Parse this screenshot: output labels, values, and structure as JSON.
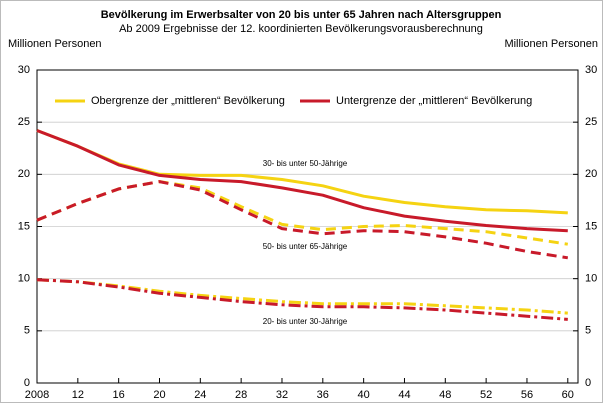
{
  "chart_data": {
    "type": "line",
    "title": "Bevölkerung im Erwerbsalter von 20 bis unter 65 Jahren nach Altersgruppen",
    "subtitle": "Ab 2009 Ergebnisse der 12. koordinierten Bevölkerungsvorausberechnung",
    "y_label": "Millionen Personen",
    "y2_label": "Millionen Personen",
    "legend": [
      {
        "name": "Obergrenze der „mittleren“ Bevölkerung",
        "color": "#f5d312"
      },
      {
        "name": "Untergrenze der „mittleren“ Bevölkerung",
        "color": "#c81a2a"
      }
    ],
    "x": [
      2008,
      2012,
      2016,
      2020,
      2024,
      2028,
      2032,
      2036,
      2040,
      2044,
      2048,
      2052,
      2056,
      2060
    ],
    "groups": [
      {
        "label": "30- bis unter 50-Jährige",
        "dash": "none",
        "upper": [
          24.2,
          22.7,
          21.0,
          20.0,
          19.9,
          19.9,
          19.5,
          18.9,
          17.9,
          17.3,
          16.9,
          16.6,
          16.5,
          16.3
        ],
        "lower": [
          24.2,
          22.7,
          20.9,
          19.9,
          19.5,
          19.3,
          18.7,
          18.0,
          16.8,
          16.0,
          15.5,
          15.1,
          14.8,
          14.6
        ]
      },
      {
        "label": "50- bis unter 65-Jährige",
        "dash": "10,6",
        "upper": [
          15.6,
          17.2,
          18.6,
          19.3,
          18.7,
          16.9,
          15.2,
          14.7,
          15.0,
          15.1,
          14.8,
          14.5,
          13.9,
          13.3
        ],
        "lower": [
          15.6,
          17.2,
          18.6,
          19.3,
          18.5,
          16.6,
          14.8,
          14.3,
          14.6,
          14.5,
          14.0,
          13.4,
          12.6,
          12.0
        ]
      },
      {
        "label": "20- bis unter 30-Jährige",
        "dash": "12,4,3,4",
        "upper": [
          9.9,
          9.7,
          9.3,
          8.8,
          8.4,
          8.1,
          7.8,
          7.6,
          7.6,
          7.6,
          7.4,
          7.2,
          7.0,
          6.7
        ],
        "lower": [
          9.9,
          9.7,
          9.2,
          8.6,
          8.2,
          7.8,
          7.5,
          7.3,
          7.3,
          7.2,
          7.0,
          6.7,
          6.4,
          6.1
        ]
      }
    ],
    "xlim": [
      2008,
      2061
    ],
    "xticks": [
      2008,
      {
        "value": 2012,
        "label": "12"
      },
      {
        "value": 2016,
        "label": "16"
      },
      {
        "value": 2020,
        "label": "20"
      },
      {
        "value": 2024,
        "label": "24"
      },
      {
        "value": 2028,
        "label": "28"
      },
      {
        "value": 2032,
        "label": "32"
      },
      {
        "value": 2036,
        "label": "36"
      },
      {
        "value": 2040,
        "label": "40"
      },
      {
        "value": 2044,
        "label": "44"
      },
      {
        "value": 2048,
        "label": "48"
      },
      {
        "value": 2052,
        "label": "52"
      },
      {
        "value": 2056,
        "label": "56"
      },
      {
        "value": 2060,
        "label": "60"
      }
    ],
    "ylim": [
      0,
      30
    ],
    "yticks": [
      0,
      5,
      10,
      15,
      20,
      25,
      30
    ],
    "y2lim": [
      0,
      30
    ],
    "y2ticks": [
      0,
      5,
      10,
      15,
      20,
      25,
      30
    ],
    "grid": true
  }
}
